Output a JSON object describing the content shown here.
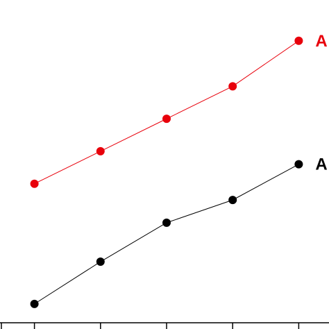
{
  "chart_data": {
    "type": "line",
    "x": [
      1,
      2,
      3,
      4,
      5
    ],
    "xlim": [
      0.5,
      5.5
    ],
    "ylim": [
      0,
      10
    ],
    "grid": false,
    "series": [
      {
        "name": "A",
        "color": "#e8000b",
        "values": [
          4.6,
          5.6,
          6.6,
          7.6,
          9.0
        ]
      },
      {
        "name": "A",
        "color": "#000000",
        "values": [
          0.9,
          2.2,
          3.4,
          4.1,
          5.2
        ]
      }
    ]
  }
}
